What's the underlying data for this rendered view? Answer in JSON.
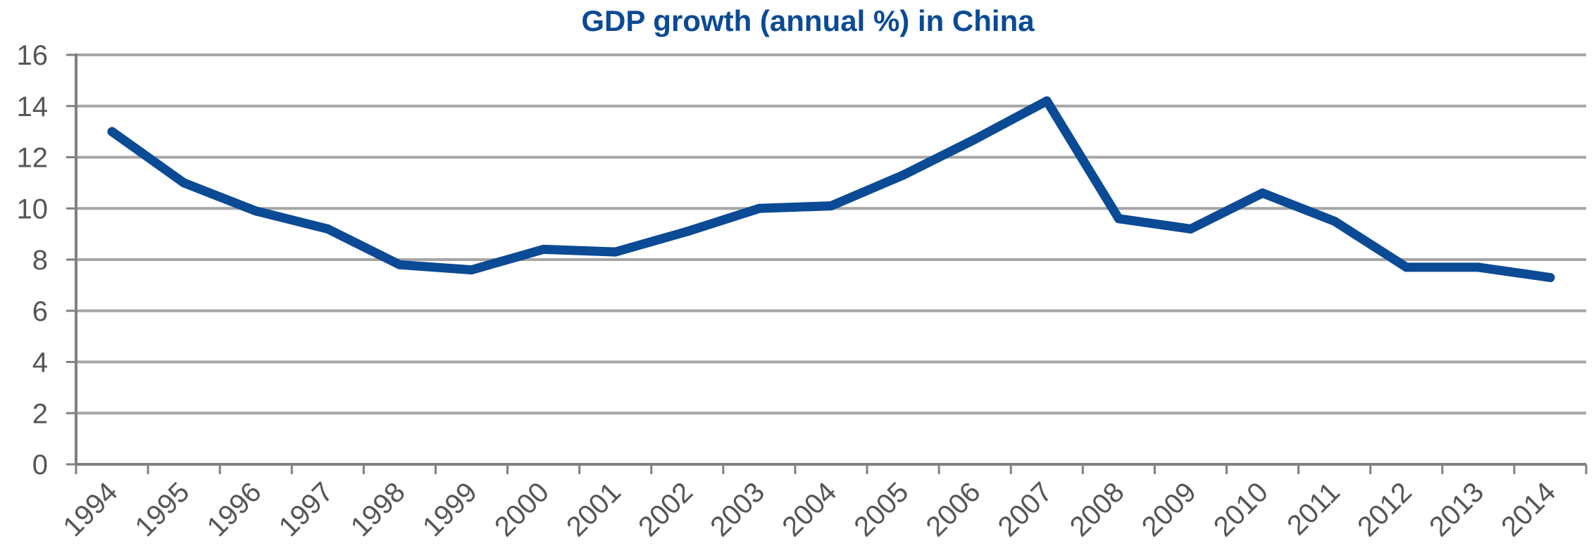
{
  "chart_data": {
    "type": "line",
    "title": "GDP growth (annual %) in China",
    "xlabel": "",
    "ylabel": "",
    "categories": [
      "1994",
      "1995",
      "1996",
      "1997",
      "1998",
      "1999",
      "2000",
      "2001",
      "2002",
      "2003",
      "2004",
      "2005",
      "2006",
      "2007",
      "2008",
      "2009",
      "2010",
      "2011",
      "2012",
      "2013",
      "2014"
    ],
    "series": [
      {
        "values": [
          13.0,
          11.0,
          9.9,
          9.2,
          7.8,
          7.6,
          8.4,
          8.3,
          9.1,
          10.0,
          10.1,
          11.3,
          12.7,
          14.2,
          9.6,
          9.2,
          10.6,
          9.5,
          7.7,
          7.7,
          7.3
        ]
      }
    ],
    "ylim": [
      0,
      16
    ],
    "yticks": [
      0,
      2,
      4,
      6,
      8,
      10,
      12,
      14,
      16
    ],
    "grid": true,
    "legend": "none",
    "colors": {
      "title": "#0b4a95",
      "line": "#0b4a95",
      "grid": "#a6a6a6",
      "axis": "#808080",
      "ticklabel": "#555555"
    }
  }
}
